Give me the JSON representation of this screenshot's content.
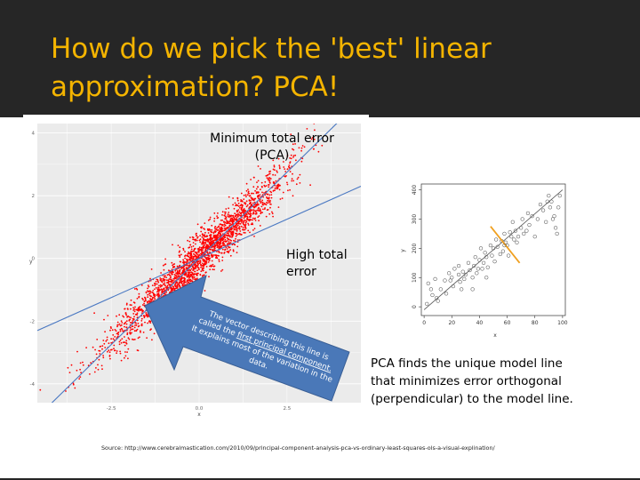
{
  "slide": {
    "title_line1": "How do we pick the 'best' linear",
    "title_line2": "approximation?  PCA!",
    "title_color": "#f4b400",
    "header_background": "#262626"
  },
  "left_chart": {
    "annotation_min_line1": "Minimum total error",
    "annotation_min_line2": "(PCA)",
    "annotation_high_line1": "High total",
    "annotation_high_line2": "error",
    "arrow": {
      "text_line1": "The vector describing this line is",
      "text_line2_prefix": "called the ",
      "text_line2_link": "first principal component.",
      "text_line3": "It explains most of the variation in the",
      "text_line4": "data.",
      "fill_color": "#4a78b8"
    }
  },
  "chart_data": [
    {
      "type": "scatter",
      "xlabel": "x",
      "ylabel": "y",
      "x_ticks": [
        "-2.5",
        "0.0",
        "2.5"
      ],
      "y_ticks": [
        "4",
        "2",
        "0",
        "-2",
        "-4"
      ],
      "xlim": [
        -4.6,
        4.6
      ],
      "ylim": [
        -4.6,
        4.3
      ],
      "point_color": "#ff0000",
      "grid": true,
      "background": "#ebebeb",
      "lines": [
        {
          "label": "Minimum total error (PCA)",
          "intercept": 0.0,
          "slope": 1.1,
          "color": "#4a78c2"
        },
        {
          "label": "High total error",
          "intercept": 0.0,
          "slope": 0.5,
          "color": "#4a78c2"
        }
      ]
    },
    {
      "type": "scatter",
      "xlabel": "x",
      "ylabel": "y",
      "x_ticks": [
        "0",
        "20",
        "40",
        "60",
        "80",
        "100"
      ],
      "y_ticks": [
        "0",
        "100",
        "200",
        "300",
        "400"
      ],
      "xlim": [
        -2,
        102
      ],
      "ylim": [
        -30,
        420
      ],
      "grid": false,
      "background": "#ffffff",
      "points": [
        [
          2,
          10
        ],
        [
          3,
          80
        ],
        [
          5,
          60
        ],
        [
          6,
          40
        ],
        [
          8,
          95
        ],
        [
          9,
          30
        ],
        [
          10,
          20
        ],
        [
          12,
          60
        ],
        [
          15,
          90
        ],
        [
          16,
          45
        ],
        [
          18,
          115
        ],
        [
          19,
          90
        ],
        [
          20,
          100
        ],
        [
          21,
          70
        ],
        [
          22,
          130
        ],
        [
          25,
          110
        ],
        [
          26,
          85
        ],
        [
          27,
          60
        ],
        [
          28,
          120
        ],
        [
          29,
          95
        ],
        [
          30,
          110
        ],
        [
          32,
          150
        ],
        [
          33,
          125
        ],
        [
          35,
          100
        ],
        [
          36,
          140
        ],
        [
          37,
          170
        ],
        [
          38,
          115
        ],
        [
          39,
          130
        ],
        [
          40,
          160
        ],
        [
          41,
          200
        ],
        [
          42,
          130
        ],
        [
          43,
          150
        ],
        [
          44,
          185
        ],
        [
          45,
          170
        ],
        [
          46,
          135
        ],
        [
          48,
          210
        ],
        [
          49,
          175
        ],
        [
          50,
          200
        ],
        [
          51,
          155
        ],
        [
          52,
          230
        ],
        [
          53,
          205
        ],
        [
          55,
          180
        ],
        [
          56,
          225
        ],
        [
          57,
          190
        ],
        [
          58,
          250
        ],
        [
          59,
          220
        ],
        [
          60,
          210
        ],
        [
          61,
          175
        ],
        [
          62,
          255
        ],
        [
          63,
          240
        ],
        [
          64,
          290
        ],
        [
          65,
          230
        ],
        [
          66,
          260
        ],
        [
          67,
          220
        ],
        [
          68,
          240
        ],
        [
          70,
          270
        ],
        [
          71,
          300
        ],
        [
          72,
          250
        ],
        [
          74,
          260
        ],
        [
          75,
          320
        ],
        [
          76,
          280
        ],
        [
          78,
          310
        ],
        [
          80,
          240
        ],
        [
          82,
          300
        ],
        [
          84,
          350
        ],
        [
          86,
          330
        ],
        [
          88,
          290
        ],
        [
          89,
          360
        ],
        [
          90,
          380
        ],
        [
          91,
          340
        ],
        [
          92,
          360
        ],
        [
          93,
          300
        ],
        [
          94,
          310
        ],
        [
          95,
          270
        ],
        [
          96,
          250
        ],
        [
          97,
          340
        ],
        [
          98,
          380
        ],
        [
          35,
          60
        ],
        [
          45,
          100
        ],
        [
          25,
          140
        ]
      ],
      "fit_line": {
        "intercept": -10,
        "slope": 4.1,
        "color": "#555555"
      },
      "highlight_point": [
        58,
        210
      ],
      "perpendicular_segment": {
        "from": [
          48,
          275
        ],
        "to": [
          69,
          150
        ],
        "color": "#f0a020"
      }
    }
  ],
  "caption": {
    "line1": "PCA finds the unique model line",
    "line2": "that minimizes error orthogonal",
    "line3": "(perpendicular) to the model line."
  },
  "source": "Source: http://www.cerebralmastication.com/2010/09/principal-component-analysis-pca-vs-ordinary-least-squares-ols-a-visual-explination/"
}
